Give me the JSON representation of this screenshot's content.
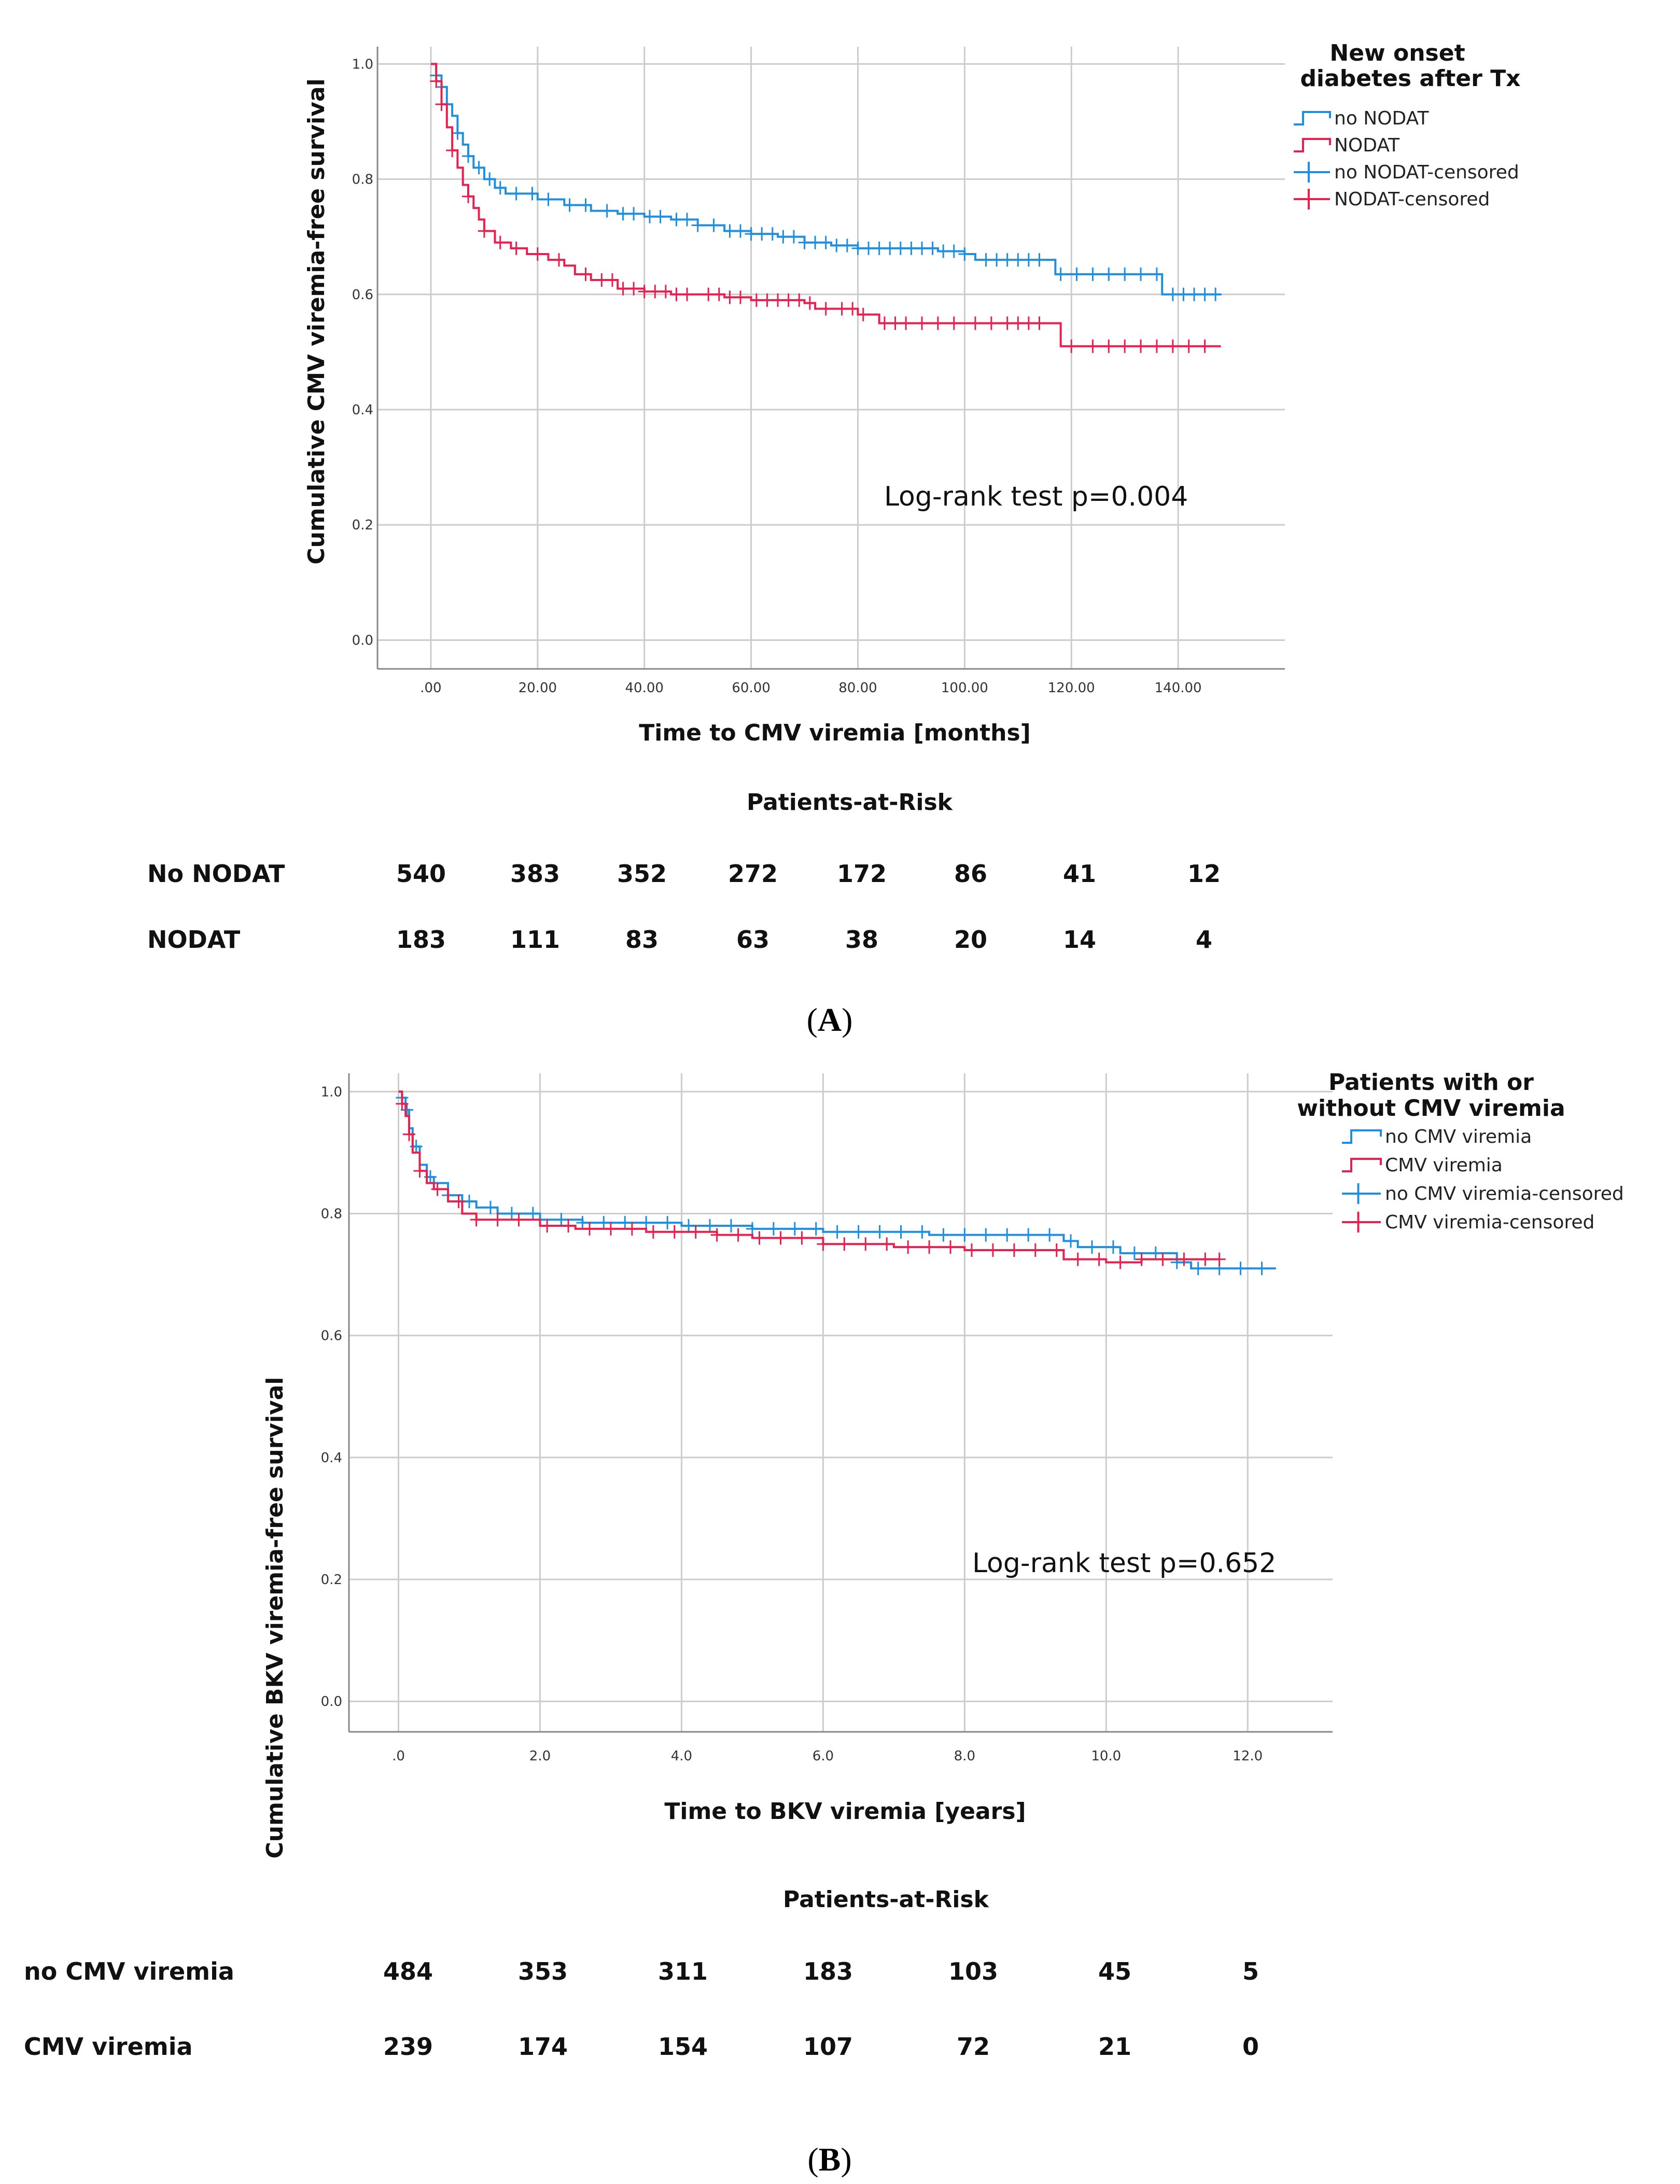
{
  "colors": {
    "blue": "#1f8fe0",
    "red": "#e8204f",
    "grid": "#cccccc",
    "axis": "#888888"
  },
  "chart_data": [
    {
      "type": "line",
      "subtype": "kaplan-meier",
      "panel_label": "A",
      "ylabel": "Cumulative CMV viremia-free survival",
      "xlabel": "Time to CMV viremia [months]",
      "xlim": [
        -10,
        160
      ],
      "ylim": [
        -0.05,
        1.03
      ],
      "x_ticks": [
        ".00",
        "20.00",
        "40.00",
        "60.00",
        "80.00",
        "100.00",
        "120.00",
        "140.00"
      ],
      "x_tick_values": [
        0,
        20,
        40,
        60,
        80,
        100,
        120,
        140
      ],
      "y_ticks": [
        "0.0",
        "0.2",
        "0.4",
        "0.6",
        "0.8",
        "1.0"
      ],
      "y_tick_values": [
        0,
        0.2,
        0.4,
        0.6,
        0.8,
        1.0
      ],
      "legend_title": "New onset diabetes after Tx",
      "legend_entries": [
        "no NODAT",
        "NODAT",
        "no NODAT-censored",
        "NODAT-censored"
      ],
      "annotation": "Log-rank test p=0.004",
      "series": [
        {
          "name": "no NODAT",
          "color": "#1f8fe0",
          "points": [
            [
              0,
              1.0
            ],
            [
              1,
              0.98
            ],
            [
              2,
              0.96
            ],
            [
              3,
              0.93
            ],
            [
              4,
              0.91
            ],
            [
              5,
              0.88
            ],
            [
              6,
              0.86
            ],
            [
              7,
              0.84
            ],
            [
              8,
              0.82
            ],
            [
              10,
              0.8
            ],
            [
              12,
              0.785
            ],
            [
              14,
              0.775
            ],
            [
              20,
              0.765
            ],
            [
              25,
              0.755
            ],
            [
              30,
              0.745
            ],
            [
              35,
              0.74
            ],
            [
              40,
              0.735
            ],
            [
              45,
              0.73
            ],
            [
              50,
              0.72
            ],
            [
              55,
              0.71
            ],
            [
              60,
              0.705
            ],
            [
              65,
              0.7
            ],
            [
              70,
              0.69
            ],
            [
              75,
              0.685
            ],
            [
              80,
              0.68
            ],
            [
              90,
              0.68
            ],
            [
              95,
              0.675
            ],
            [
              100,
              0.67
            ],
            [
              102,
              0.66
            ],
            [
              115,
              0.66
            ],
            [
              117,
              0.635
            ],
            [
              135,
              0.635
            ],
            [
              137,
              0.6
            ],
            [
              148,
              0.6
            ]
          ],
          "censored_x": [
            1,
            2,
            3,
            5,
            7,
            9,
            11,
            13,
            16,
            19,
            22,
            26,
            29,
            33,
            36,
            38,
            41,
            43,
            46,
            48,
            50,
            53,
            56,
            58,
            60,
            62,
            64,
            66,
            68,
            70,
            72,
            74,
            76,
            78,
            80,
            82,
            84,
            86,
            88,
            90,
            92,
            94,
            96,
            98,
            100,
            104,
            106,
            108,
            110,
            112,
            114,
            118,
            121,
            124,
            127,
            130,
            133,
            136,
            139,
            141,
            143,
            145,
            147
          ]
        },
        {
          "name": "NODAT",
          "color": "#e8204f",
          "points": [
            [
              0,
              1.0
            ],
            [
              1,
              0.97
            ],
            [
              2,
              0.93
            ],
            [
              3,
              0.89
            ],
            [
              4,
              0.85
            ],
            [
              5,
              0.82
            ],
            [
              6,
              0.79
            ],
            [
              7,
              0.77
            ],
            [
              8,
              0.75
            ],
            [
              9,
              0.73
            ],
            [
              10,
              0.71
            ],
            [
              12,
              0.69
            ],
            [
              15,
              0.68
            ],
            [
              18,
              0.67
            ],
            [
              22,
              0.66
            ],
            [
              25,
              0.65
            ],
            [
              27,
              0.635
            ],
            [
              30,
              0.625
            ],
            [
              35,
              0.61
            ],
            [
              40,
              0.605
            ],
            [
              45,
              0.6
            ],
            [
              55,
              0.595
            ],
            [
              60,
              0.59
            ],
            [
              70,
              0.585
            ],
            [
              72,
              0.575
            ],
            [
              80,
              0.565
            ],
            [
              84,
              0.55
            ],
            [
              117,
              0.55
            ],
            [
              118,
              0.51
            ],
            [
              148,
              0.51
            ]
          ],
          "censored_x": [
            1,
            2,
            4,
            7,
            10,
            13,
            16,
            20,
            24,
            29,
            32,
            34,
            36,
            38,
            40,
            42,
            44,
            46,
            48,
            52,
            54,
            56,
            58,
            61,
            63,
            65,
            67,
            69,
            71,
            74,
            77,
            79,
            81,
            85,
            87,
            89,
            92,
            95,
            98,
            102,
            105,
            108,
            110,
            112,
            114,
            120,
            124,
            127,
            130,
            133,
            136,
            139,
            142,
            145
          ]
        }
      ],
      "risk_table": {
        "title": "Patients-at-Risk",
        "rows": [
          {
            "label": "No NODAT",
            "values": [
              "540",
              "383",
              "352",
              "272",
              "172",
              "86",
              "41",
              "12"
            ]
          },
          {
            "label": "NODAT",
            "values": [
              "183",
              "111",
              "83",
              "63",
              "38",
              "20",
              "14",
              "4"
            ]
          }
        ]
      }
    },
    {
      "type": "line",
      "subtype": "kaplan-meier",
      "panel_label": "B",
      "ylabel": "Cumulative BKV viremia-free survival",
      "xlabel": "Time to BKV viremia [years]",
      "xlim": [
        -0.7,
        13.2
      ],
      "ylim": [
        -0.05,
        1.03
      ],
      "x_ticks": [
        ".0",
        "2.0",
        "4.0",
        "6.0",
        "8.0",
        "10.0",
        "12.0"
      ],
      "x_tick_values": [
        0,
        2,
        4,
        6,
        8,
        10,
        12
      ],
      "y_ticks": [
        "0.0",
        "0.2",
        "0.4",
        "0.6",
        "0.8",
        "1.0"
      ],
      "y_tick_values": [
        0,
        0.2,
        0.4,
        0.6,
        0.8,
        1.0
      ],
      "legend_title": "Patients with or without CMV viremia",
      "legend_entries": [
        "no CMV viremia",
        "CMV viremia",
        "no CMV viremia-censored",
        "CMV viremia-censored"
      ],
      "annotation": "Log-rank test p=0.652",
      "series": [
        {
          "name": "no CMV viremia",
          "color": "#1f8fe0",
          "points": [
            [
              0,
              1.0
            ],
            [
              0.05,
              0.99
            ],
            [
              0.1,
              0.97
            ],
            [
              0.15,
              0.94
            ],
            [
              0.2,
              0.91
            ],
            [
              0.3,
              0.88
            ],
            [
              0.4,
              0.86
            ],
            [
              0.5,
              0.85
            ],
            [
              0.7,
              0.83
            ],
            [
              0.9,
              0.82
            ],
            [
              1.1,
              0.81
            ],
            [
              1.4,
              0.8
            ],
            [
              2.0,
              0.79
            ],
            [
              2.6,
              0.785
            ],
            [
              3.0,
              0.785
            ],
            [
              4.0,
              0.78
            ],
            [
              5.0,
              0.775
            ],
            [
              6.0,
              0.77
            ],
            [
              7.5,
              0.765
            ],
            [
              9.2,
              0.765
            ],
            [
              9.4,
              0.755
            ],
            [
              9.6,
              0.745
            ],
            [
              10.2,
              0.735
            ],
            [
              11.0,
              0.72
            ],
            [
              11.2,
              0.71
            ],
            [
              12.4,
              0.71
            ]
          ],
          "censored_x": [
            0.05,
            0.12,
            0.25,
            0.45,
            0.7,
            1.0,
            1.3,
            1.6,
            1.9,
            2.3,
            2.6,
            2.9,
            3.2,
            3.5,
            3.8,
            4.1,
            4.4,
            4.7,
            5.0,
            5.3,
            5.6,
            5.9,
            6.2,
            6.5,
            6.8,
            7.1,
            7.4,
            7.7,
            8.0,
            8.3,
            8.6,
            8.9,
            9.2,
            9.5,
            9.8,
            10.1,
            10.4,
            10.7,
            11.0,
            11.3,
            11.6,
            11.9,
            12.2
          ]
        },
        {
          "name": "CMV viremia",
          "color": "#e8204f",
          "points": [
            [
              0,
              1.0
            ],
            [
              0.05,
              0.98
            ],
            [
              0.1,
              0.96
            ],
            [
              0.15,
              0.93
            ],
            [
              0.2,
              0.9
            ],
            [
              0.3,
              0.87
            ],
            [
              0.4,
              0.85
            ],
            [
              0.5,
              0.84
            ],
            [
              0.7,
              0.82
            ],
            [
              0.9,
              0.8
            ],
            [
              1.1,
              0.79
            ],
            [
              1.8,
              0.79
            ],
            [
              2.0,
              0.78
            ],
            [
              2.5,
              0.775
            ],
            [
              3.5,
              0.77
            ],
            [
              4.5,
              0.765
            ],
            [
              5.0,
              0.76
            ],
            [
              6.0,
              0.75
            ],
            [
              7.0,
              0.745
            ],
            [
              8.0,
              0.74
            ],
            [
              9.3,
              0.74
            ],
            [
              9.4,
              0.725
            ],
            [
              10.0,
              0.72
            ],
            [
              10.5,
              0.725
            ],
            [
              11.0,
              0.725
            ],
            [
              11.6,
              0.725
            ]
          ],
          "censored_x": [
            0.05,
            0.15,
            0.3,
            0.55,
            0.85,
            1.1,
            1.4,
            1.7,
            2.1,
            2.4,
            2.7,
            3.0,
            3.3,
            3.6,
            3.9,
            4.2,
            4.5,
            4.8,
            5.1,
            5.4,
            5.7,
            6.0,
            6.3,
            6.6,
            6.9,
            7.2,
            7.5,
            7.8,
            8.1,
            8.4,
            8.7,
            9.0,
            9.3,
            9.6,
            9.9,
            10.2,
            10.5,
            10.8,
            11.1,
            11.4,
            11.6
          ]
        }
      ],
      "risk_table": {
        "title": "Patients-at-Risk",
        "rows": [
          {
            "label": "no CMV viremia",
            "values": [
              "484",
              "353",
              "311",
              "183",
              "103",
              "45",
              "5"
            ]
          },
          {
            "label": "CMV viremia",
            "values": [
              "239",
              "174",
              "154",
              "107",
              "72",
              "21",
              "0"
            ]
          }
        ]
      }
    }
  ]
}
